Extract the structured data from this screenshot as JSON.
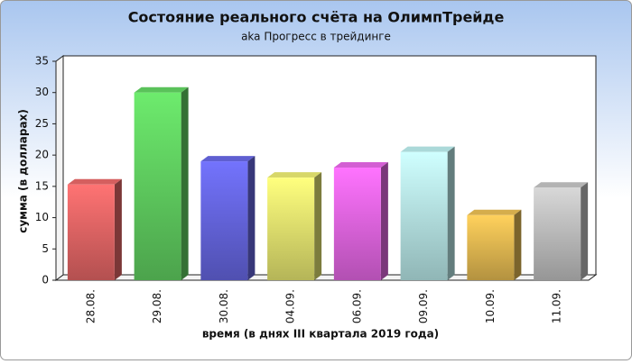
{
  "chart_data": {
    "type": "bar3d",
    "title": "Состояние реального счёта на ОлимпТрейде",
    "subtitle": "aka Прогресс в трейдинге",
    "x_label": "время (в днях III квартала 2019 года)",
    "y_label": "сумма (в долларах)",
    "categories": [
      "28.08.",
      "29.08.",
      "30.08.",
      "04.09.",
      "06.09.",
      "09.09.",
      "10.09.",
      "11.09."
    ],
    "values": [
      15.3,
      30,
      19,
      16.4,
      18,
      20.5,
      10.4,
      14.8
    ],
    "colors": [
      "#e06464",
      "#5fcc5f",
      "#6464dc",
      "#e2e26e",
      "#de64de",
      "#b4e4e4",
      "#e0b650",
      "#bcbcbc"
    ],
    "ylim": [
      0,
      35
    ],
    "yticks": [
      0,
      5,
      10,
      15,
      20,
      25,
      30,
      35
    ]
  }
}
